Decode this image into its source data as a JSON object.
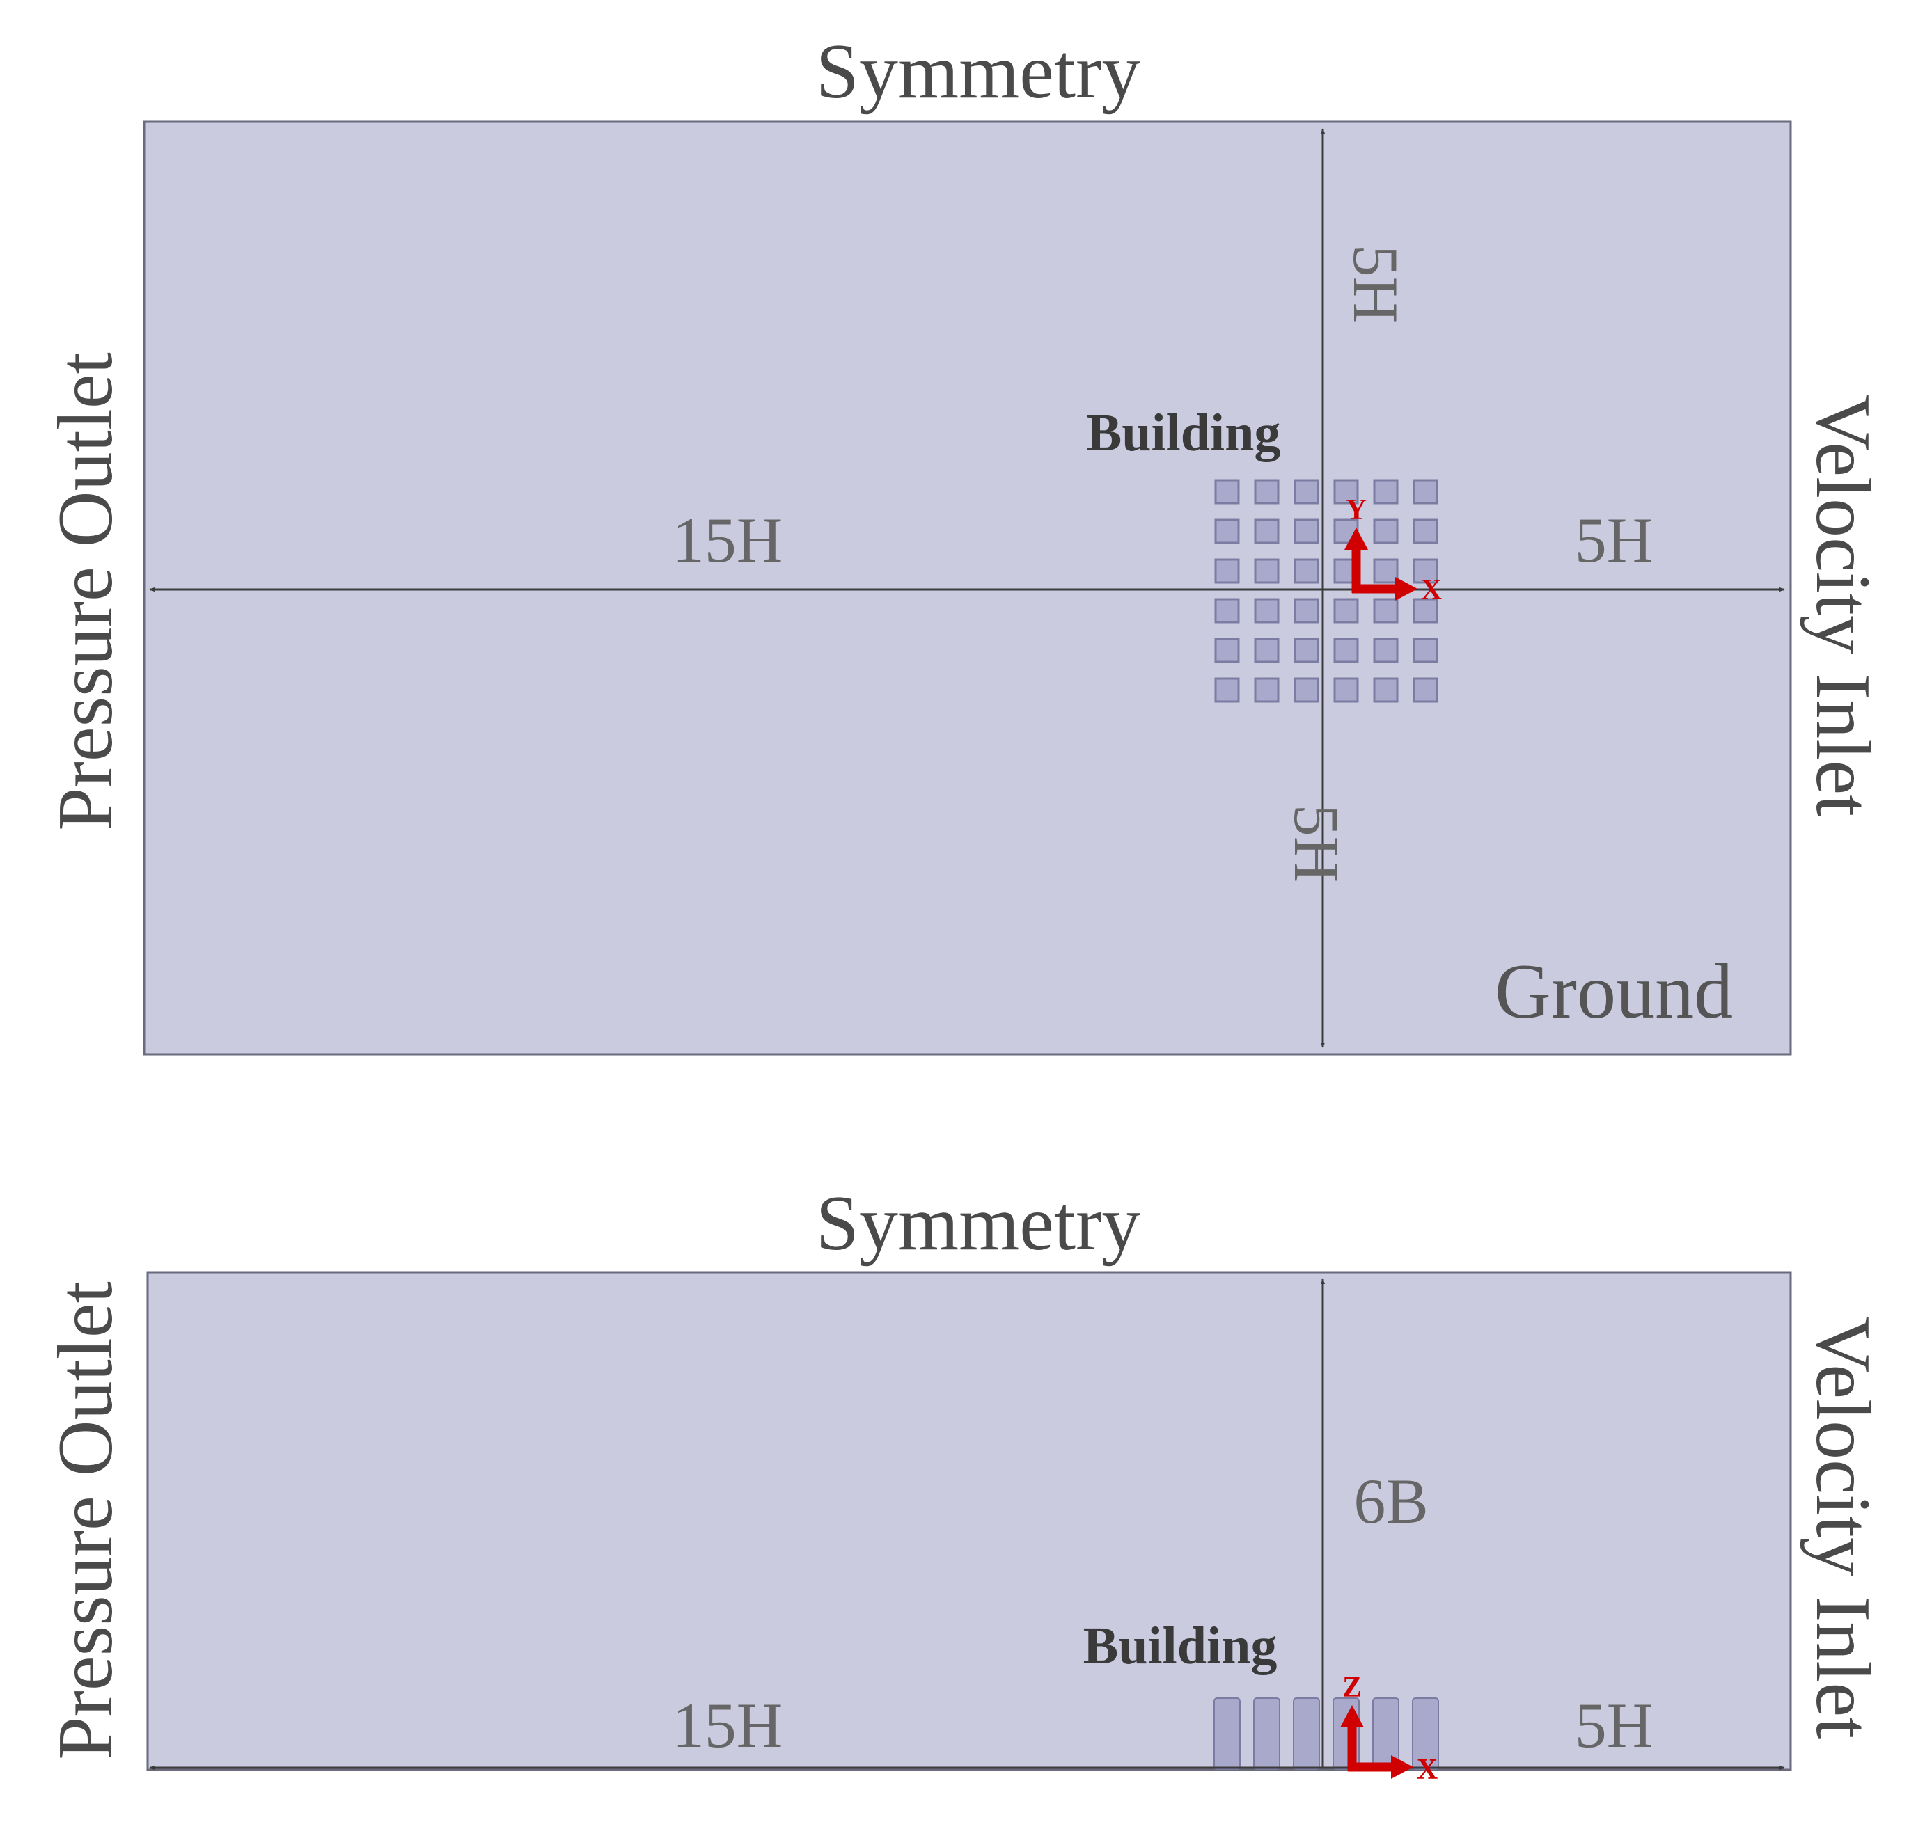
{
  "plan_view": {
    "top_label": "Symmetry",
    "left_label": "Pressure Outlet",
    "right_label": "Velocity Inlet",
    "bottom_right_label": "Ground",
    "building_label": "Building",
    "downstream_label": "15H",
    "upstream_label": "5H",
    "top_distance_label": "5H",
    "bottom_distance_label": "5H",
    "axis_x": "X",
    "axis_y": "Y",
    "building_grid": {
      "rows": 6,
      "cols": 6
    }
  },
  "elevation_view": {
    "top_label": "Symmetry",
    "left_label": "Pressure Outlet",
    "right_label": "Velocity Inlet",
    "building_label": "Building",
    "downstream_label": "15H",
    "upstream_label": "5H",
    "height_label": "6B",
    "axis_x": "X",
    "axis_z": "Z",
    "building_columns": 6
  },
  "colors": {
    "domain_fill": "#cbcbe0",
    "domain_stroke": "#6a6a7c",
    "building_fill": "#a9a9cc",
    "building_stroke": "#7c7ca2",
    "dimension_line": "#3c3c3c",
    "dimension_text": "#666666",
    "boundary_text": "#4a4a4a",
    "axis_red": "#d10000"
  }
}
